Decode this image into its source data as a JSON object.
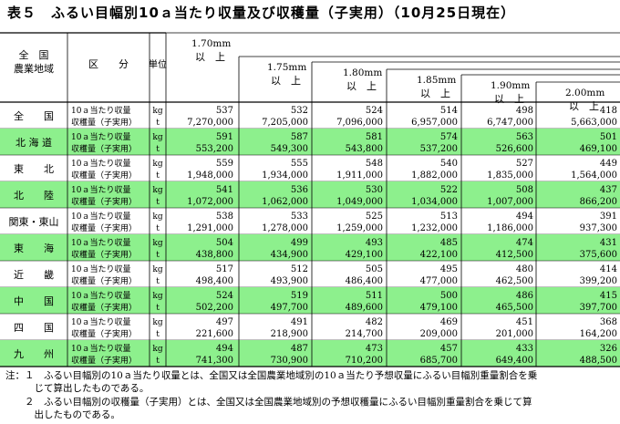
{
  "title": "表５　ふるい目幅別10ａ当たり収量及び収穫量（子実用）（10月25日現在）",
  "header": {
    "region": [
      "全　国",
      "農業地域"
    ],
    "category": "区　　分",
    "unit": "単位",
    "columns": [
      [
        "1.70mm",
        "以　上"
      ],
      [
        "1.75mm",
        "以　上"
      ],
      [
        "1.80mm",
        "以　上"
      ],
      [
        "1.85mm",
        "以　上"
      ],
      [
        "1.90mm",
        "以　上"
      ],
      [
        "2.00mm",
        "以　上"
      ]
    ]
  },
  "row_labels": {
    "yield": "10ａ当たり収量",
    "harvest": "収穫量（子実用）"
  },
  "units": {
    "yield": "kg",
    "harvest": "t"
  },
  "rows": [
    {
      "region": "全　　国",
      "green": false,
      "yield": [
        "537",
        "532",
        "524",
        "514",
        "498",
        "418"
      ],
      "harvest": [
        "7,270,000",
        "7,205,000",
        "7,096,000",
        "6,957,000",
        "6,747,000",
        "5,663,000"
      ]
    },
    {
      "region": "北 海 道",
      "green": true,
      "yield": [
        "591",
        "587",
        "581",
        "574",
        "563",
        "501"
      ],
      "harvest": [
        "553,200",
        "549,300",
        "543,800",
        "537,200",
        "526,600",
        "469,100"
      ]
    },
    {
      "region": "東　　北",
      "green": false,
      "yield": [
        "559",
        "555",
        "548",
        "540",
        "527",
        "449"
      ],
      "harvest": [
        "1,948,000",
        "1,934,000",
        "1,911,000",
        "1,882,000",
        "1,835,000",
        "1,564,000"
      ]
    },
    {
      "region": "北　　陸",
      "green": true,
      "yield": [
        "541",
        "536",
        "530",
        "522",
        "508",
        "437"
      ],
      "harvest": [
        "1,072,000",
        "1,062,000",
        "1,049,000",
        "1,034,000",
        "1,007,000",
        "866,200"
      ]
    },
    {
      "region": "関東・東山",
      "green": false,
      "yield": [
        "538",
        "533",
        "525",
        "513",
        "494",
        "391"
      ],
      "harvest": [
        "1,291,000",
        "1,278,000",
        "1,259,000",
        "1,232,000",
        "1,186,000",
        "937,300"
      ]
    },
    {
      "region": "東　　海",
      "green": true,
      "yield": [
        "504",
        "499",
        "493",
        "485",
        "474",
        "431"
      ],
      "harvest": [
        "438,800",
        "434,900",
        "429,100",
        "422,100",
        "412,500",
        "375,600"
      ]
    },
    {
      "region": "近　　畿",
      "green": false,
      "yield": [
        "517",
        "512",
        "505",
        "495",
        "480",
        "414"
      ],
      "harvest": [
        "498,400",
        "493,900",
        "486,400",
        "477,000",
        "462,500",
        "399,200"
      ]
    },
    {
      "region": "中　　国",
      "green": true,
      "yield": [
        "524",
        "519",
        "511",
        "500",
        "486",
        "415"
      ],
      "harvest": [
        "502,200",
        "497,700",
        "489,600",
        "479,100",
        "465,500",
        "397,700"
      ]
    },
    {
      "region": "四　　国",
      "green": false,
      "yield": [
        "497",
        "491",
        "482",
        "469",
        "451",
        "368"
      ],
      "harvest": [
        "221,600",
        "218,900",
        "214,700",
        "209,000",
        "201,000",
        "164,200"
      ]
    },
    {
      "region": "九　　州",
      "green": true,
      "yield": [
        "494",
        "487",
        "473",
        "457",
        "433",
        "326"
      ],
      "harvest": [
        "741,300",
        "730,900",
        "710,200",
        "685,700",
        "649,400",
        "488,500"
      ]
    }
  ],
  "notes": [
    "注：１　ふるい目幅別の10ａ当たり収量とは、全国又は全国農業地域別の10ａ当たり予想収量にふるい目幅別重量割合を乗",
    "　　　じて算出したものである。",
    "　　２　ふるい目幅別の収穫量（子実用）とは、全国又は全国農業地域別の予想収穫量にふるい目幅別重量割合を乗じて算",
    "　　　出したものである。"
  ],
  "colors": {
    "green": "#8df08d",
    "line": "#000000"
  }
}
